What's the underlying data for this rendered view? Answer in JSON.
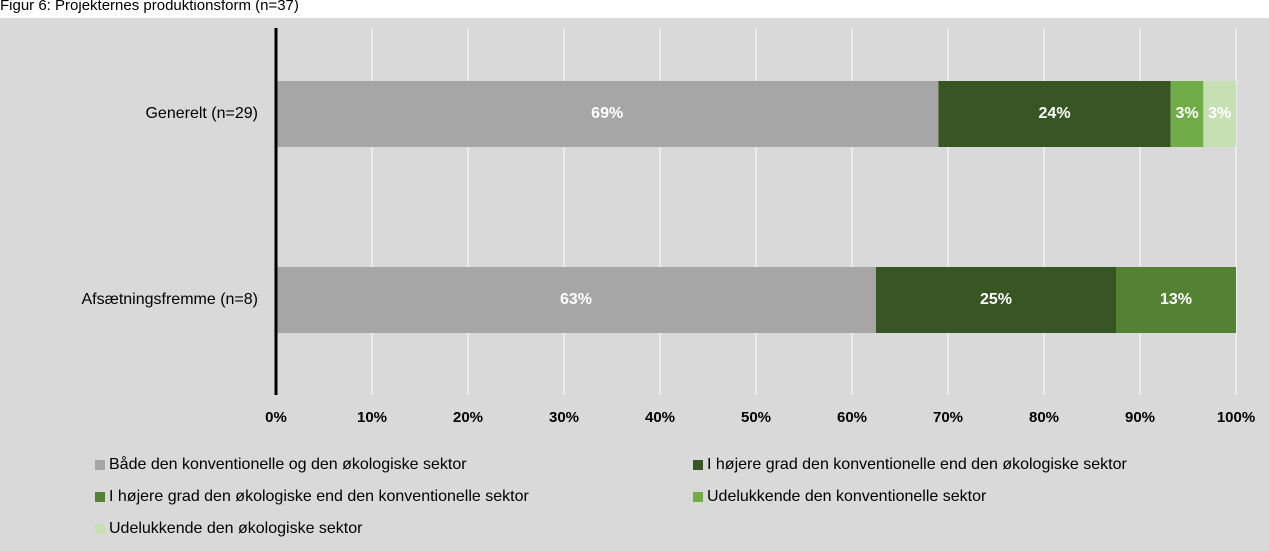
{
  "chart_data": {
    "type": "stacked-barh",
    "title": "Figur 6: Projekternes produktionsform (n=37)",
    "categories": [
      "Generelt (n=29)",
      "Afsætningsfremme (n=8)"
    ],
    "series": [
      {
        "name": "Både den konventionelle og den økologiske sektor",
        "color": "#a6a6a6",
        "values": [
          69,
          62.5
        ],
        "value_labels": [
          "69%",
          "63%"
        ]
      },
      {
        "name": "I højere grad den konventionelle end den økologiske sektor",
        "color": "#375623",
        "values": [
          24.2,
          25
        ],
        "value_labels": [
          "24%",
          "25%"
        ]
      },
      {
        "name": "I højere grad den økologiske end den konventionelle sektor",
        "color": "#548235",
        "values": [
          0,
          12.5
        ],
        "value_labels": [
          null,
          "13%"
        ]
      },
      {
        "name": "Udelukkende den konventionelle sektor",
        "color": "#70ad47",
        "values": [
          3.4,
          0
        ],
        "value_labels": [
          "3%",
          null
        ]
      },
      {
        "name": "Udelukkende den økologiske sektor",
        "color": "#c6e0b4",
        "values": [
          3.4,
          0
        ],
        "value_labels": [
          "3%",
          null
        ]
      }
    ],
    "xlim": [
      0,
      100
    ],
    "xticks": [
      {
        "value": 0,
        "label": "0%"
      },
      {
        "value": 10,
        "label": "10%"
      },
      {
        "value": 20,
        "label": "20%"
      },
      {
        "value": 30,
        "label": "30%"
      },
      {
        "value": 40,
        "label": "40%"
      },
      {
        "value": 50,
        "label": "50%"
      },
      {
        "value": 60,
        "label": "60%"
      },
      {
        "value": 70,
        "label": "70%"
      },
      {
        "value": 80,
        "label": "80%"
      },
      {
        "value": 90,
        "label": "90%"
      },
      {
        "value": 100,
        "label": "100%"
      }
    ],
    "grid": true
  }
}
